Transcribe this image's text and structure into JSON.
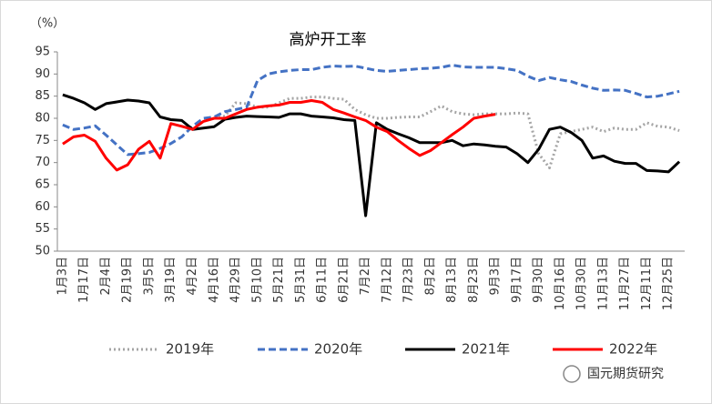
{
  "chart_data": {
    "type": "line",
    "title": "高炉开工率",
    "y_unit": "（%）",
    "watermark": "国元期货研究",
    "categories": [
      "1月3日",
      null,
      "1月17日",
      null,
      "2月4日",
      null,
      "2月19日",
      null,
      "3月5日",
      null,
      "3月19日",
      null,
      "4月2日",
      null,
      "4月16日",
      null,
      "4月29日",
      null,
      "5月10日",
      null,
      "5月21日",
      null,
      "5月31日",
      null,
      "6月11日",
      null,
      "6月21日",
      null,
      "7月2日",
      null,
      "7月12日",
      null,
      "7月23日",
      null,
      "8月2日",
      null,
      "8月13日",
      null,
      "8月23日",
      null,
      "9月3日",
      null,
      "9月17日",
      null,
      "9月30日",
      null,
      "10月16日",
      null,
      "10月30日",
      null,
      "11月13日",
      null,
      "11月27日",
      null,
      "12月11日",
      null,
      "12月25日",
      null
    ],
    "series": [
      {
        "name": "2019年",
        "color": "#a5a5a5",
        "line_style": "dotted",
        "values": [
          null,
          null,
          null,
          null,
          null,
          null,
          null,
          null,
          null,
          null,
          null,
          null,
          null,
          null,
          80,
          80.5,
          83.5,
          83.3,
          82.5,
          82.5,
          83.5,
          84.5,
          84.5,
          84.8,
          84.8,
          84.5,
          84.3,
          82,
          80.8,
          80,
          80,
          80.2,
          80.3,
          80.3,
          81.5,
          82.8,
          81.5,
          81,
          80.8,
          81,
          81,
          81,
          81.2,
          81,
          72,
          68.8,
          76.5,
          77,
          77.5,
          78,
          77,
          77.8,
          77.5,
          77.5,
          79,
          78.2,
          78,
          77.2
        ]
      },
      {
        "name": "2020年",
        "color": "#4472c4",
        "line_style": "dashed",
        "values": [
          78.5,
          77.5,
          77.8,
          78.3,
          76.2,
          74,
          71.8,
          72,
          72.3,
          73.2,
          74.3,
          75.8,
          78.2,
          80,
          80.3,
          81.5,
          82,
          82.5,
          88.5,
          90,
          90.5,
          90.8,
          91,
          91,
          91.5,
          91.8,
          91.7,
          91.8,
          91.3,
          90.8,
          90.6,
          90.8,
          91,
          91.2,
          91.3,
          91.5,
          92,
          91.6,
          91.5,
          91.5,
          91.5,
          91.2,
          90.8,
          89.5,
          88.5,
          89.2,
          88.7,
          88.3,
          87.5,
          86.8,
          86.3,
          86.4,
          86.3,
          85.6,
          84.8,
          85,
          85.5,
          86.1
        ]
      },
      {
        "name": "2021年",
        "color": "#000000",
        "line_style": "solid",
        "values": [
          85.3,
          84.5,
          83.5,
          82,
          83.3,
          83.7,
          84.1,
          83.9,
          83.5,
          80.3,
          79.7,
          79.5,
          77.5,
          77.8,
          78.1,
          79.8,
          80.2,
          80.5,
          80.4,
          80.3,
          80.2,
          81,
          81,
          80.5,
          80.3,
          80.1,
          79.7,
          79.5,
          58,
          79,
          77.5,
          76.5,
          75.6,
          74.5,
          74.5,
          74.5,
          75,
          73.8,
          74.2,
          74,
          73.7,
          73.5,
          72,
          70,
          73,
          77.5,
          78,
          76.8,
          75,
          71,
          71.5,
          70.3,
          69.8,
          69.8,
          68.2,
          68.1,
          67.9,
          70.2
        ]
      },
      {
        "name": "2022年",
        "color": "#ff0000",
        "line_style": "solid",
        "values": [
          74.2,
          75.8,
          76.2,
          74.8,
          71,
          68.3,
          69.5,
          73,
          74.8,
          71,
          78.8,
          78.2,
          77.5,
          79.3,
          80,
          80,
          81,
          82,
          82.5,
          82.8,
          83,
          83.6,
          83.6,
          84,
          83.6,
          82,
          81.2,
          80.3,
          79.5,
          78,
          77,
          75,
          73.2,
          71.6,
          72.7,
          74.5,
          76.3,
          78,
          80,
          80.5,
          80.9,
          null,
          null,
          null,
          null,
          null,
          null,
          null,
          null,
          null,
          null,
          null,
          null,
          null,
          null,
          null,
          null,
          null
        ]
      }
    ],
    "ylim": [
      50,
      95
    ],
    "yticks": [
      50,
      55,
      60,
      65,
      70,
      75,
      80,
      85,
      90,
      95
    ],
    "grid": false,
    "legend": "bottom"
  }
}
